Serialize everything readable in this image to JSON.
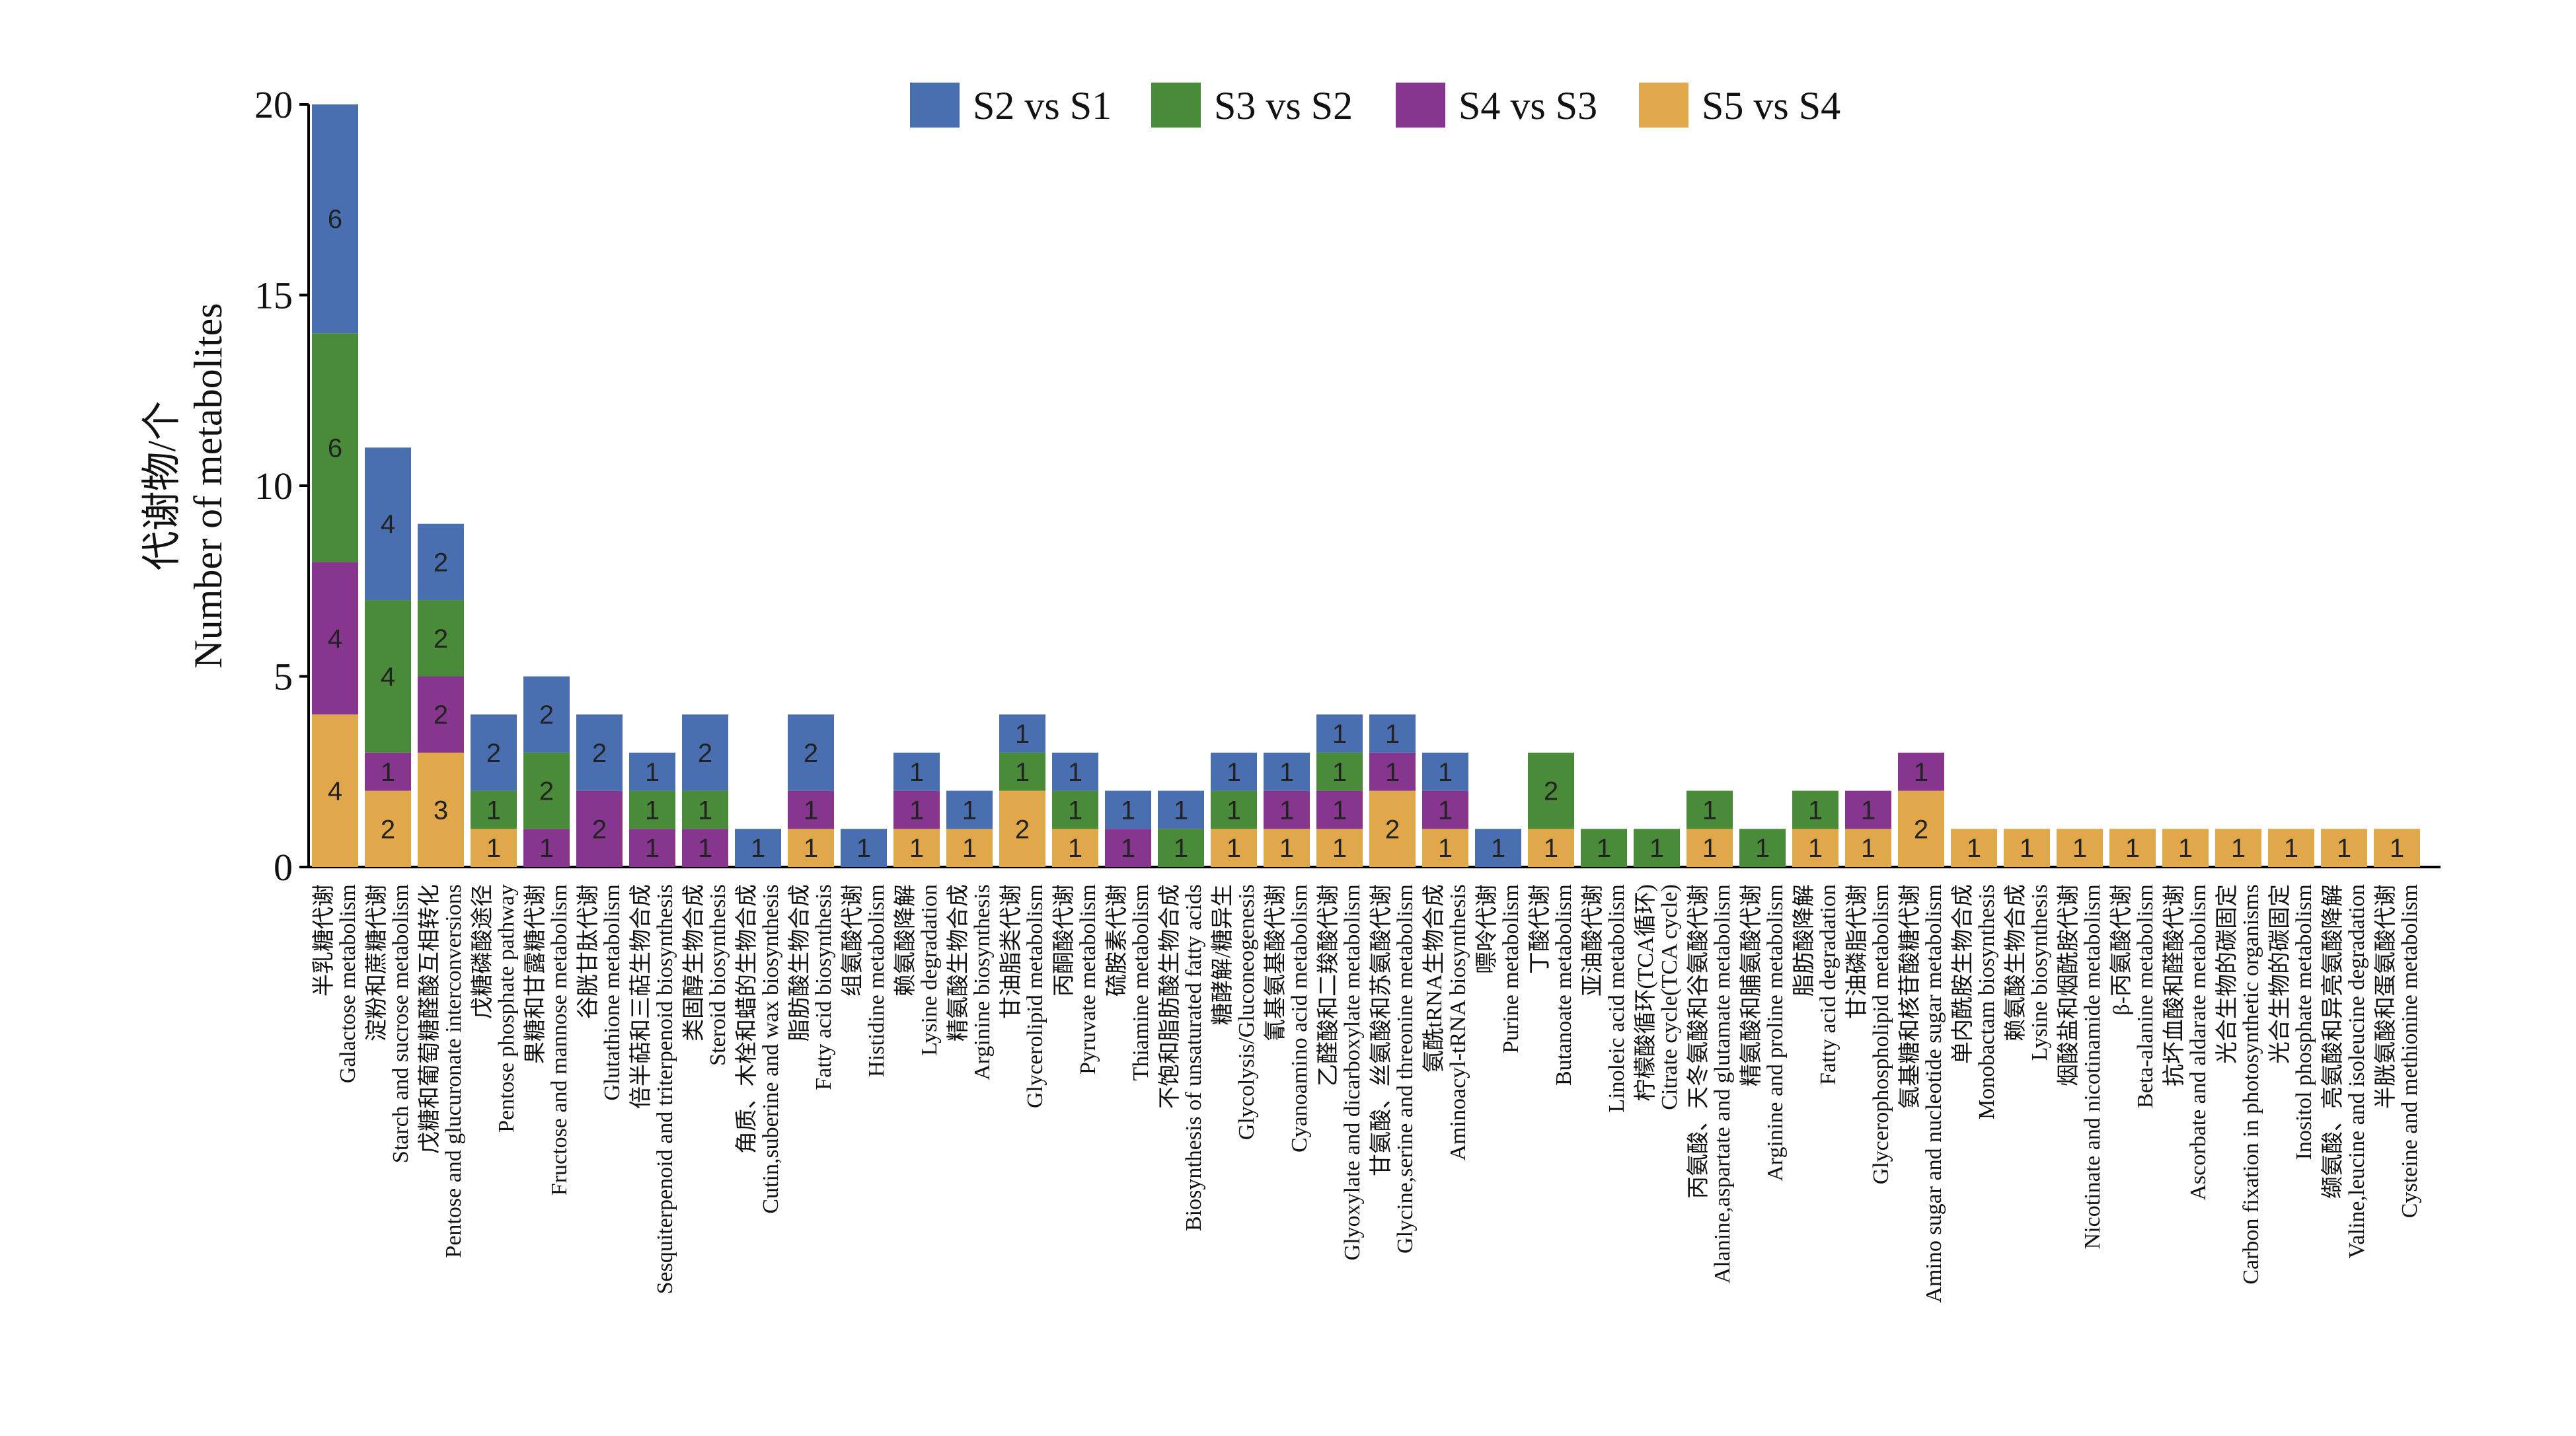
{
  "chart_data": {
    "type": "stacked_bar",
    "ylabel": [
      "代谢物/个",
      "Number of metabolites"
    ],
    "categories": [
      {
        "zh": "半乳糖代谢",
        "en": "Galactose metabolism"
      },
      {
        "zh": "淀粉和蔗糖代谢",
        "en": "Starch and sucrose metabolism"
      },
      {
        "zh": "戊糖和葡萄糖醛酸互相转化",
        "en": "Pentose and glucuronate interconversions"
      },
      {
        "zh": "戊糖磷酸途径",
        "en": "Pentose phosphate pathway"
      },
      {
        "zh": "果糖和甘露糖代谢",
        "en": "Fructose and mannose metabolism"
      },
      {
        "zh": "谷胱甘肽代谢",
        "en": "Glutathione metabolism"
      },
      {
        "zh": "倍半萜和三萜生物合成",
        "en": "Sesquiterpenoid and triterpenoid biosynthesis"
      },
      {
        "zh": "类固醇生物合成",
        "en": "Steroid biosynthesis"
      },
      {
        "zh": "角质、木栓和蜡的生物合成",
        "en": "Cutin,suberine and wax biosynthesis"
      },
      {
        "zh": "脂肪酸生物合成",
        "en": "Fatty acid biosynthesis"
      },
      {
        "zh": "组氨酸代谢",
        "en": "Histidine metabolism"
      },
      {
        "zh": "赖氨酸降解",
        "en": "Lysine degradation"
      },
      {
        "zh": "精氨酸生物合成",
        "en": "Arginine biosynthesis"
      },
      {
        "zh": "甘油脂类代谢",
        "en": "Glycerolipid metabolism"
      },
      {
        "zh": "丙酮酸代谢",
        "en": "Pyruvate metabolism"
      },
      {
        "zh": "硫胺素代谢",
        "en": "Thiamine metabolism"
      },
      {
        "zh": "不饱和脂肪酸生物合成",
        "en": "Biosynthesis of unsaturated fatty acids"
      },
      {
        "zh": "糖酵解/糖异生",
        "en": "Glycolysis/Gluconeogenesis"
      },
      {
        "zh": "氰基氨基酸代谢",
        "en": "Cyanoamino acid metabolism"
      },
      {
        "zh": "乙醛酸和二羧酸代谢",
        "en": "Glyoxylate and dicarboxylate metabolism"
      },
      {
        "zh": "甘氨酸、丝氨酸和苏氨酸代谢",
        "en": "Glycine,serine and threonine metabolism"
      },
      {
        "zh": "氨酰tRNA生物合成",
        "en": "Aminoacyl-tRNA biosynthesis"
      },
      {
        "zh": "嘌呤代谢",
        "en": "Purine metabolism"
      },
      {
        "zh": "丁酸代谢",
        "en": "Butanoate metabolism"
      },
      {
        "zh": "亚油酸代谢",
        "en": "Linoleic acid metabolism"
      },
      {
        "zh": "柠檬酸循环(TCA循环)",
        "en": "Citrate cycle(TCA cycle)"
      },
      {
        "zh": "丙氨酸、天冬氨酸和谷氨酸代谢",
        "en": "Alanine,aspartate and glutamate metabolism"
      },
      {
        "zh": "精氨酸和脯氨酸代谢",
        "en": "Arginine and proline metabolism"
      },
      {
        "zh": "脂肪酸降解",
        "en": "Fatty acid degradation"
      },
      {
        "zh": "甘油磷脂代谢",
        "en": "Glycerophospholipid metabolism"
      },
      {
        "zh": "氨基糖和核苷酸糖代谢",
        "en": "Amino sugar and nucleotide sugar metabolism"
      },
      {
        "zh": "单内酰胺生物合成",
        "en": "Monobactam biosynthesis"
      },
      {
        "zh": "赖氨酸生物合成",
        "en": "Lysine biosynthesis"
      },
      {
        "zh": "烟酸盐和烟酰胺代谢",
        "en": "Nicotinate and nicotinamide metabolism"
      },
      {
        "zh": "β-丙氨酸代谢",
        "en": "Beta-alanine metabolism"
      },
      {
        "zh": "抗坏血酸和醛酸代谢",
        "en": "Ascorbate and aldarate metabolism"
      },
      {
        "zh": "光合生物的碳固定",
        "en": "Carbon fixation in photosynthetic organisms"
      },
      {
        "zh": "光合生物的碳固定",
        "en": "Inositol phosphate metabolism"
      },
      {
        "zh": "缬氨酸、亮氨酸和异亮氨酸降解",
        "en": "Valine,leucine and isoleucine degradation"
      },
      {
        "zh": "半胱氨酸和蛋氨酸代谢",
        "en": "Cysteine and methionine metabolism"
      }
    ],
    "series": [
      {
        "name": "S5 vs S4",
        "color": "#e0a84a",
        "values": [
          4,
          2,
          3,
          1,
          null,
          null,
          null,
          null,
          null,
          1,
          null,
          1,
          1,
          2,
          1,
          null,
          null,
          1,
          1,
          1,
          2,
          1,
          null,
          1,
          null,
          null,
          1,
          null,
          1,
          1,
          2,
          1,
          1,
          1,
          1,
          1,
          1,
          1,
          1,
          1
        ]
      },
      {
        "name": "S4 vs S3",
        "color": "#86368f",
        "values": [
          4,
          1,
          2,
          null,
          1,
          2,
          1,
          1,
          null,
          1,
          null,
          1,
          null,
          null,
          null,
          1,
          null,
          null,
          1,
          1,
          1,
          1,
          null,
          null,
          null,
          null,
          null,
          null,
          null,
          1,
          1,
          null,
          null,
          null,
          null,
          null,
          null,
          null,
          null,
          null
        ]
      },
      {
        "name": "S3 vs S2",
        "color": "#4a8b3a",
        "values": [
          6,
          4,
          2,
          1,
          2,
          null,
          1,
          1,
          null,
          null,
          null,
          null,
          null,
          1,
          1,
          null,
          1,
          1,
          null,
          1,
          null,
          null,
          null,
          2,
          1,
          1,
          1,
          1,
          1,
          null,
          null,
          null,
          null,
          null,
          null,
          null,
          null,
          null,
          null,
          null
        ]
      },
      {
        "name": "S2 vs S1",
        "color": "#4a6fb0",
        "values": [
          6,
          4,
          2,
          2,
          2,
          2,
          1,
          2,
          1,
          2,
          1,
          1,
          1,
          1,
          1,
          1,
          1,
          1,
          1,
          1,
          1,
          1,
          1,
          null,
          null,
          null,
          null,
          null,
          null,
          null,
          null,
          null,
          null,
          null,
          null,
          null,
          null,
          null,
          null,
          null
        ]
      }
    ],
    "legend_order": [
      3,
      2,
      1,
      0
    ],
    "ylim": [
      0,
      20
    ],
    "yticks": [
      0,
      5,
      10,
      15,
      20
    ],
    "grid": false
  }
}
